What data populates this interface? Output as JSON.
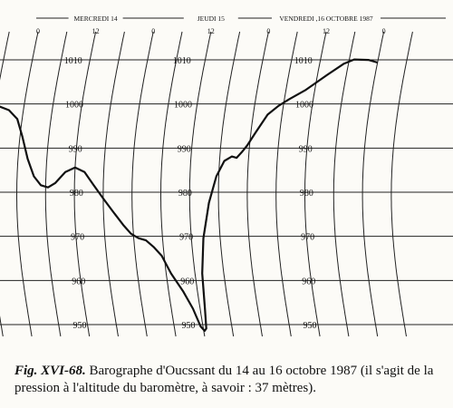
{
  "chart_data": {
    "type": "line",
    "title": "",
    "days": [
      "MERCREDI 14",
      "JEUDI 15",
      "VENDREDI ,16 OCTOBRE 1987"
    ],
    "hour_ticks": [
      "0",
      "12",
      "0",
      "12",
      "0",
      "12",
      "0"
    ],
    "pressure_ticks": [
      {
        "value": 1010,
        "label": "1010"
      },
      {
        "value": 1000,
        "label": "1000"
      },
      {
        "value": 990,
        "label": "990"
      },
      {
        "value": 980,
        "label": "980"
      },
      {
        "value": 970,
        "label": "970"
      },
      {
        "value": 960,
        "label": "960"
      },
      {
        "value": 950,
        "label": "950"
      }
    ],
    "ylim": [
      948,
      1012
    ],
    "xlim_hours": [
      0,
      72
    ],
    "grid": true,
    "series": [
      {
        "points": [
          [
            -8,
            1000
          ],
          [
            -5,
            999.8
          ],
          [
            -3,
            999
          ],
          [
            -1,
            997
          ],
          [
            0.5,
            993
          ],
          [
            2,
            988
          ],
          [
            3.5,
            984
          ],
          [
            5,
            982
          ],
          [
            6.5,
            981.5
          ],
          [
            8,
            982.5
          ],
          [
            10,
            985
          ],
          [
            12,
            986
          ],
          [
            14,
            985
          ],
          [
            16,
            982
          ],
          [
            18,
            979
          ],
          [
            20,
            976
          ],
          [
            22,
            973
          ],
          [
            23.5,
            971
          ],
          [
            25,
            970
          ],
          [
            26.5,
            969.5
          ],
          [
            28,
            968
          ],
          [
            29.5,
            966
          ],
          [
            31,
            962
          ],
          [
            33,
            958
          ],
          [
            34.5,
            954
          ],
          [
            35.5,
            950
          ],
          [
            36.2,
            949
          ],
          [
            36.6,
            949.5
          ],
          [
            37,
            954
          ],
          [
            37.5,
            962
          ],
          [
            38.5,
            970
          ],
          [
            40,
            978
          ],
          [
            41.5,
            984
          ],
          [
            43,
            987.5
          ],
          [
            44.5,
            988.5
          ],
          [
            45.5,
            988.2
          ],
          [
            46.5,
            989.5
          ],
          [
            47.5,
            991
          ],
          [
            49,
            994
          ],
          [
            51,
            998
          ],
          [
            53,
            1000
          ],
          [
            55,
            1001.5
          ],
          [
            58,
            1003.5
          ],
          [
            62,
            1007
          ],
          [
            65,
            1009.5
          ],
          [
            67,
            1010.5
          ],
          [
            70,
            1010.4
          ],
          [
            72,
            1009.8
          ]
        ]
      }
    ]
  },
  "caption": {
    "fig_label": "Fig. XVI-68.",
    "text": " Barographe d'Oucssant du 14 au 16 octobre 1987 (il s'agit de la pression à l'altitude du baromètre, à savoir : 37 mètres)."
  }
}
